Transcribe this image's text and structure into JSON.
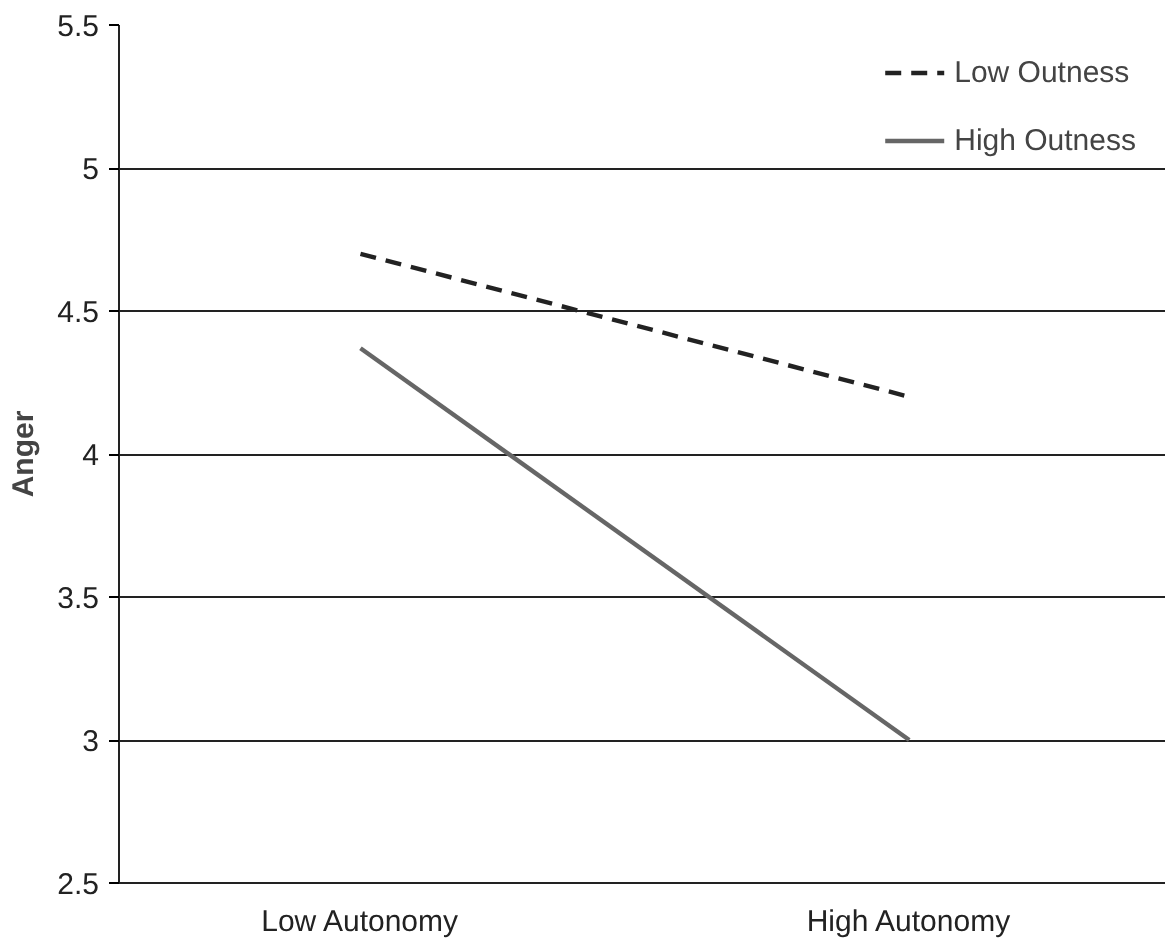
{
  "chart_data": {
    "type": "line",
    "ylabel": "Anger",
    "categories": [
      "Low Autonomy",
      "High Autonomy"
    ],
    "series": [
      {
        "name": "Low Outness",
        "color": "#222222",
        "values": [
          4.7,
          4.2
        ],
        "line_style": "dashed"
      },
      {
        "name": "High Outness",
        "color": "#666666",
        "values": [
          4.37,
          3.0
        ],
        "line_style": "solid"
      }
    ],
    "ylim": [
      2.5,
      5.5
    ],
    "yticks": [
      2.5,
      3,
      3.5,
      4,
      4.5,
      5,
      5.5
    ],
    "grid": "y",
    "legend": "top right",
    "marker": "none"
  }
}
